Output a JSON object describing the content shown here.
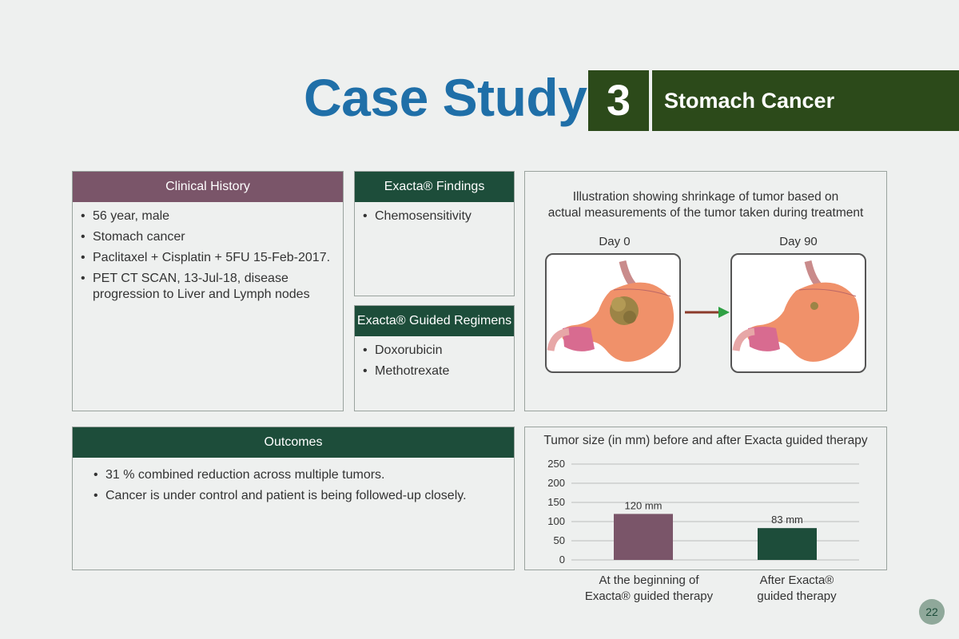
{
  "header": {
    "title": "Case Study",
    "number": "3",
    "subtitle": "Stomach Cancer"
  },
  "clinical_history": {
    "heading": "Clinical History",
    "items": [
      "56 year, male",
      "Stomach cancer",
      "Paclitaxel + Cisplatin + 5FU 15-Feb-2017.",
      "PET CT SCAN, 13-Jul-18, disease progression to Liver and Lymph nodes"
    ]
  },
  "findings": {
    "heading": "Exacta® Findings",
    "items": [
      "Chemosensitivity"
    ]
  },
  "regimens": {
    "heading": "Exacta® Guided Regimens",
    "items": [
      "Doxorubicin",
      "Methotrexate"
    ]
  },
  "illustration": {
    "caption_line1": "Illustration showing shrinkage of tumor based on",
    "caption_line2": "actual measurements of the tumor taken during treatment",
    "day_before": "Day 0",
    "day_after": "Day 90"
  },
  "outcomes": {
    "heading": "Outcomes",
    "items": [
      "31 % combined reduction across multiple tumors.",
      "Cancer is under control and patient is being followed-up closely."
    ]
  },
  "chart_data": {
    "type": "bar",
    "title": "Tumor size (in mm) before and after Exacta guided therapy",
    "categories": [
      "At the beginning of Exacta® guided therapy",
      "After Exacta® guided therapy"
    ],
    "category_lines": [
      [
        "At the beginning of",
        "Exacta® guided therapy"
      ],
      [
        "After Exacta®",
        "guided therapy"
      ]
    ],
    "values": [
      120,
      83
    ],
    "data_labels": [
      "120 mm",
      "83 mm"
    ],
    "colors": [
      "#7a5569",
      "#1d4d3a"
    ],
    "yticks": [
      "0",
      "50",
      "100",
      "150",
      "200",
      "250"
    ],
    "ylim": [
      0,
      250
    ],
    "grid": true
  },
  "page_number": "22",
  "colors": {
    "title_blue": "#1f6fa8",
    "header_green": "#2c4a1a",
    "purple": "#7a5569",
    "dark_green": "#1d4d3a"
  }
}
